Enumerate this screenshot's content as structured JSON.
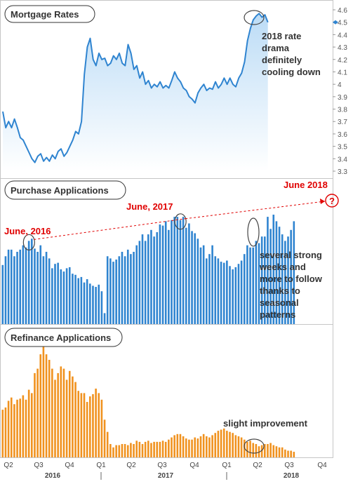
{
  "chart_data": [
    {
      "type": "area",
      "title": "Mortgage Rates",
      "ylim": [
        3.3,
        4.65
      ],
      "yticks": [
        "4.6",
        "4.5",
        "4.4",
        "4.3",
        "4.2",
        "4.1",
        "4",
        "3.9",
        "3.8",
        "3.7",
        "3.6",
        "3.5",
        "3.4",
        "3.3"
      ],
      "current_value_label": "4.5",
      "grid": false,
      "annotation": "2018 rate drama definitely cooling down",
      "x_start_week": 0,
      "series": [
        {
          "values": [
            3.78,
            3.65,
            3.7,
            3.65,
            3.72,
            3.65,
            3.57,
            3.55,
            3.5,
            3.45,
            3.4,
            3.37,
            3.42,
            3.44,
            3.38,
            3.41,
            3.38,
            3.43,
            3.4,
            3.46,
            3.48,
            3.42,
            3.45,
            3.5,
            3.55,
            3.62,
            3.6,
            3.7,
            4.08,
            4.3,
            4.37,
            4.2,
            4.15,
            4.25,
            4.2,
            4.21,
            4.15,
            4.17,
            4.23,
            4.2,
            4.25,
            4.17,
            4.15,
            4.32,
            4.25,
            4.12,
            4.15,
            4.05,
            4.1,
            4.0,
            4.03,
            3.97,
            4.0,
            3.98,
            4.02,
            3.97,
            3.99,
            3.97,
            4.03,
            4.1,
            4.05,
            4.02,
            3.97,
            3.95,
            3.9,
            3.88,
            3.85,
            3.93,
            3.97,
            4.0,
            3.95,
            3.97,
            3.96,
            4.02,
            3.97,
            4.0,
            4.05,
            4.0,
            4.05,
            4.0,
            3.98,
            4.05,
            4.09,
            4.18,
            4.35,
            4.45,
            4.52,
            4.55,
            4.57,
            4.54,
            4.56,
            4.5
          ]
        }
      ]
    },
    {
      "type": "bar",
      "title": "Purchase Applications",
      "color": "#2f84d0",
      "ymax": 1.0,
      "grid": false,
      "annotations": [
        {
          "label": "June, 2016",
          "week": 9
        },
        {
          "label": "June, 2017",
          "week": 61
        },
        {
          "label": "June 2018",
          "week": 113,
          "marker": "?"
        }
      ],
      "note": "several strong weeks and more to follow thanks to seasonal patterns",
      "series": [
        {
          "values": [
            0.54,
            0.62,
            0.68,
            0.68,
            0.62,
            0.66,
            0.68,
            0.72,
            0.7,
            0.76,
            0.78,
            0.69,
            0.66,
            0.72,
            0.62,
            0.66,
            0.6,
            0.51,
            0.55,
            0.56,
            0.5,
            0.48,
            0.51,
            0.52,
            0.46,
            0.45,
            0.42,
            0.43,
            0.38,
            0.41,
            0.37,
            0.35,
            0.34,
            0.36,
            0.3,
            0.1,
            0.62,
            0.6,
            0.57,
            0.59,
            0.62,
            0.66,
            0.62,
            0.68,
            0.64,
            0.66,
            0.72,
            0.76,
            0.82,
            0.76,
            0.82,
            0.86,
            0.8,
            0.84,
            0.91,
            0.9,
            0.94,
            0.86,
            0.95,
            0.98,
            0.98,
            0.95,
            0.98,
            0.88,
            0.92,
            0.85,
            0.83,
            0.78,
            0.7,
            0.72,
            0.6,
            0.64,
            0.72,
            0.62,
            0.6,
            0.57,
            0.56,
            0.58,
            0.53,
            0.5,
            0.52,
            0.55,
            0.58,
            0.64,
            0.72,
            0.7,
            0.7,
            0.76,
            0.74,
            0.8,
            0.8,
            0.98,
            0.87,
            1.0,
            0.94,
            0.89,
            0.82,
            0.76,
            0.8,
            0.86,
            0.94
          ]
        }
      ]
    },
    {
      "type": "bar",
      "title": "Refinance Applications",
      "color": "#f0921f",
      "ymax": 1.0,
      "grid": false,
      "annotation": "slight improvement",
      "series": [
        {
          "values": [
            0.43,
            0.45,
            0.51,
            0.54,
            0.48,
            0.52,
            0.53,
            0.56,
            0.52,
            0.61,
            0.58,
            0.76,
            0.8,
            0.93,
            1.0,
            0.93,
            0.88,
            0.8,
            0.7,
            0.76,
            0.82,
            0.8,
            0.7,
            0.78,
            0.73,
            0.68,
            0.6,
            0.58,
            0.58,
            0.5,
            0.55,
            0.57,
            0.62,
            0.58,
            0.52,
            0.34,
            0.23,
            0.12,
            0.09,
            0.11,
            0.11,
            0.12,
            0.12,
            0.11,
            0.13,
            0.12,
            0.15,
            0.14,
            0.12,
            0.14,
            0.15,
            0.13,
            0.14,
            0.14,
            0.14,
            0.15,
            0.14,
            0.16,
            0.18,
            0.2,
            0.21,
            0.21,
            0.19,
            0.17,
            0.16,
            0.16,
            0.18,
            0.17,
            0.19,
            0.21,
            0.19,
            0.18,
            0.2,
            0.22,
            0.24,
            0.25,
            0.26,
            0.24,
            0.23,
            0.22,
            0.2,
            0.19,
            0.18,
            0.16,
            0.14,
            0.15,
            0.13,
            0.12,
            0.1,
            0.11,
            0.12,
            0.12,
            0.13,
            0.11,
            0.1,
            0.09,
            0.09,
            0.07,
            0.06,
            0.06,
            0.05
          ]
        }
      ]
    }
  ],
  "x_axis": {
    "quarters": [
      "Q2",
      "Q3",
      "Q4",
      "Q1",
      "Q2",
      "Q3",
      "Q4",
      "Q1",
      "Q2",
      "Q3",
      "Q4"
    ],
    "years": [
      "2016",
      "2017",
      "2018"
    ]
  }
}
